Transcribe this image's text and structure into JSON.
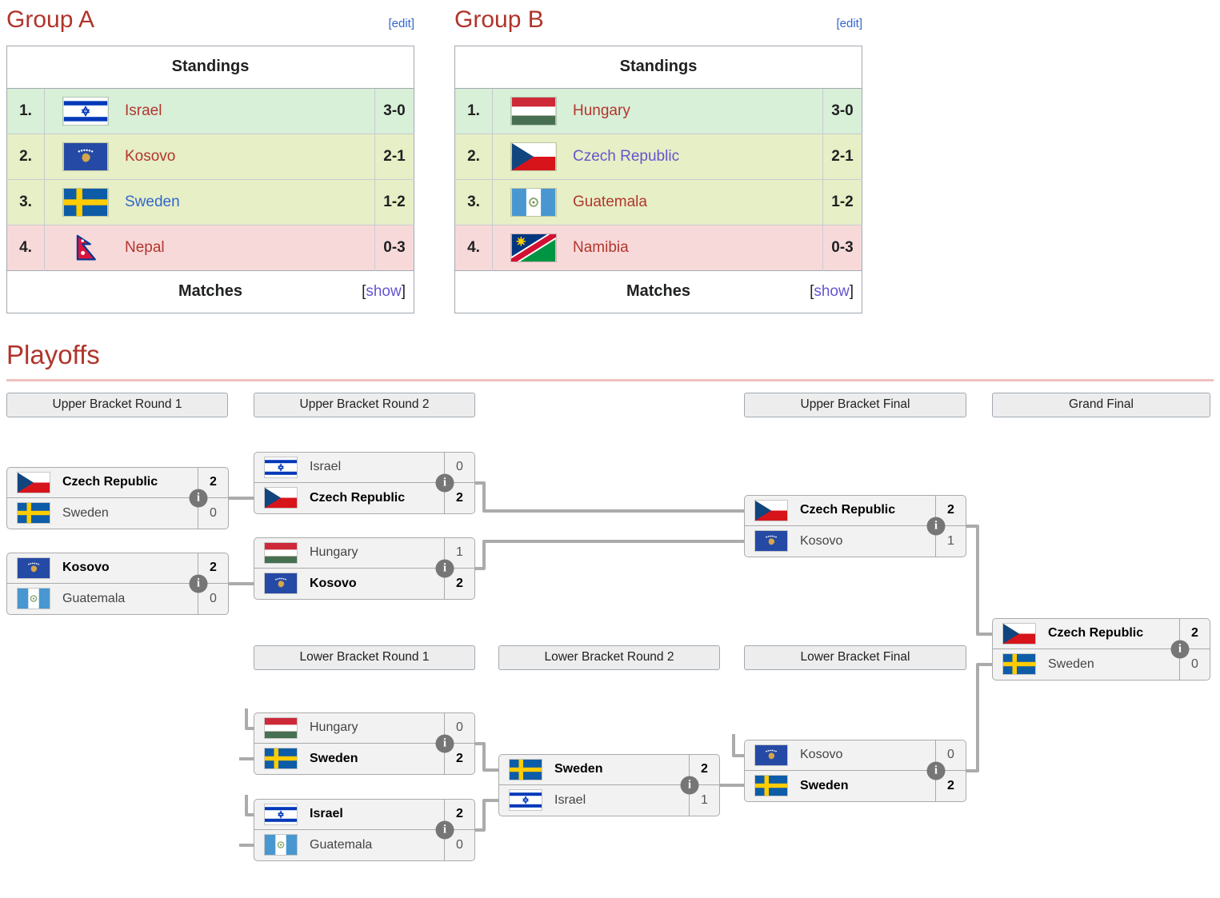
{
  "colors": {
    "heading_red": "#b0342c",
    "playoffs_underline": "#f0c0c0",
    "link_blue": "#3366cc",
    "link_purple": "#6554cf",
    "link_red": "#b2362e",
    "row_first_place": "#d8efd8",
    "row_middle_places": "#e6efc5",
    "row_last_place": "#f8d9d9",
    "bracket_line": "#ababab",
    "bracket_box_bg": "#f2f2f2",
    "round_header_bg": "#ededed",
    "info_icon_bg": "#767676"
  },
  "labels": {
    "bracket_open": "[",
    "bracket_close": "]"
  },
  "groups": [
    {
      "title": "Group A",
      "edit_label": "[edit]",
      "standings_label": "Standings",
      "matches_label": "Matches",
      "show_label": "show",
      "rows": [
        {
          "place": "1.",
          "flag": "israel",
          "team": "Israel",
          "record": "3-0",
          "tier": "first",
          "link": "red"
        },
        {
          "place": "2.",
          "flag": "kosovo",
          "team": "Kosovo",
          "record": "2-1",
          "tier": "mid",
          "link": "red"
        },
        {
          "place": "3.",
          "flag": "sweden",
          "team": "Sweden",
          "record": "1-2",
          "tier": "mid",
          "link": "blue"
        },
        {
          "place": "4.",
          "flag": "nepal",
          "team": "Nepal",
          "record": "0-3",
          "tier": "last",
          "link": "red"
        }
      ]
    },
    {
      "title": "Group B",
      "edit_label": "[edit]",
      "standings_label": "Standings",
      "matches_label": "Matches",
      "show_label": "show",
      "rows": [
        {
          "place": "1.",
          "flag": "hungary",
          "team": "Hungary",
          "record": "3-0",
          "tier": "first",
          "link": "red"
        },
        {
          "place": "2.",
          "flag": "czech",
          "team": "Czech Republic",
          "record": "2-1",
          "tier": "mid",
          "link": "purple"
        },
        {
          "place": "3.",
          "flag": "guatemala",
          "team": "Guatemala",
          "record": "1-2",
          "tier": "mid",
          "link": "red"
        },
        {
          "place": "4.",
          "flag": "namibia",
          "team": "Namibia",
          "record": "0-3",
          "tier": "last",
          "link": "red"
        }
      ]
    }
  ],
  "playoffs": {
    "title": "Playoffs",
    "info_icon_glyph": "i",
    "upper_rounds": [
      "Upper Bracket Round 1",
      "Upper Bracket Round 2",
      "Upper Bracket Final",
      "Grand Final"
    ],
    "lower_rounds": [
      "Lower Bracket Round 1",
      "Lower Bracket Round 2",
      "Lower Bracket Final"
    ],
    "matches": [
      {
        "id": "ub-r1-m1",
        "round": "Upper Bracket Round 1",
        "top": {
          "flag": "czech",
          "team": "Czech Republic",
          "score": "2",
          "winner": true
        },
        "bottom": {
          "flag": "sweden",
          "team": "Sweden",
          "score": "0",
          "winner": false
        }
      },
      {
        "id": "ub-r1-m2",
        "round": "Upper Bracket Round 1",
        "top": {
          "flag": "kosovo",
          "team": "Kosovo",
          "score": "2",
          "winner": true
        },
        "bottom": {
          "flag": "guatemala",
          "team": "Guatemala",
          "score": "0",
          "winner": false
        }
      },
      {
        "id": "ub-r2-m1",
        "round": "Upper Bracket Round 2",
        "top": {
          "flag": "israel",
          "team": "Israel",
          "score": "0",
          "winner": false
        },
        "bottom": {
          "flag": "czech",
          "team": "Czech Republic",
          "score": "2",
          "winner": true
        }
      },
      {
        "id": "ub-r2-m2",
        "round": "Upper Bracket Round 2",
        "top": {
          "flag": "hungary",
          "team": "Hungary",
          "score": "1",
          "winner": false
        },
        "bottom": {
          "flag": "kosovo",
          "team": "Kosovo",
          "score": "2",
          "winner": true
        }
      },
      {
        "id": "ub-final",
        "round": "Upper Bracket Final",
        "top": {
          "flag": "czech",
          "team": "Czech Republic",
          "score": "2",
          "winner": true
        },
        "bottom": {
          "flag": "kosovo",
          "team": "Kosovo",
          "score": "1",
          "winner": false
        }
      },
      {
        "id": "grand-final",
        "round": "Grand Final",
        "top": {
          "flag": "czech",
          "team": "Czech Republic",
          "score": "2",
          "winner": true
        },
        "bottom": {
          "flag": "sweden",
          "team": "Sweden",
          "score": "0",
          "winner": false
        }
      },
      {
        "id": "lb-r1-m1",
        "round": "Lower Bracket Round 1",
        "top": {
          "flag": "hungary",
          "team": "Hungary",
          "score": "0",
          "winner": false
        },
        "bottom": {
          "flag": "sweden",
          "team": "Sweden",
          "score": "2",
          "winner": true
        }
      },
      {
        "id": "lb-r1-m2",
        "round": "Lower Bracket Round 1",
        "top": {
          "flag": "israel",
          "team": "Israel",
          "score": "2",
          "winner": true
        },
        "bottom": {
          "flag": "guatemala",
          "team": "Guatemala",
          "score": "0",
          "winner": false
        }
      },
      {
        "id": "lb-r2-m1",
        "round": "Lower Bracket Round 2",
        "top": {
          "flag": "sweden",
          "team": "Sweden",
          "score": "2",
          "winner": true
        },
        "bottom": {
          "flag": "israel",
          "team": "Israel",
          "score": "1",
          "winner": false
        }
      },
      {
        "id": "lb-final",
        "round": "Lower Bracket Final",
        "top": {
          "flag": "kosovo",
          "team": "Kosovo",
          "score": "0",
          "winner": false
        },
        "bottom": {
          "flag": "sweden",
          "team": "Sweden",
          "score": "2",
          "winner": true
        }
      }
    ]
  }
}
